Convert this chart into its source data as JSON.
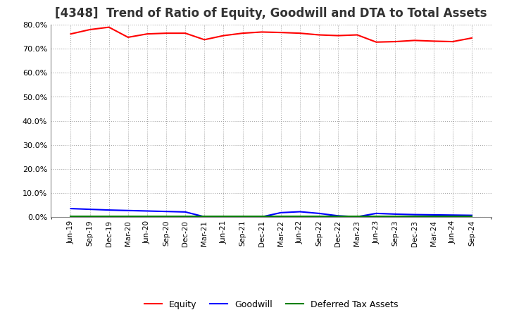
{
  "title": "[4348]  Trend of Ratio of Equity, Goodwill and DTA to Total Assets",
  "x_labels": [
    "Jun-19",
    "Sep-19",
    "Dec-19",
    "Mar-20",
    "Jun-20",
    "Sep-20",
    "Dec-20",
    "Mar-21",
    "Jun-21",
    "Sep-21",
    "Dec-21",
    "Mar-22",
    "Jun-22",
    "Sep-22",
    "Dec-22",
    "Mar-23",
    "Jun-23",
    "Sep-23",
    "Dec-23",
    "Mar-24",
    "Jun-24",
    "Sep-24"
  ],
  "equity": [
    76.2,
    78.0,
    79.0,
    74.8,
    76.2,
    76.5,
    76.5,
    73.8,
    75.5,
    76.5,
    77.0,
    76.8,
    76.5,
    75.8,
    75.5,
    75.8,
    72.8,
    73.0,
    73.5,
    73.2,
    73.0,
    74.5
  ],
  "goodwill": [
    3.5,
    3.2,
    2.9,
    2.7,
    2.5,
    2.3,
    2.1,
    0.1,
    0.08,
    0.06,
    0.05,
    1.8,
    2.2,
    1.5,
    0.5,
    0.1,
    1.5,
    1.2,
    1.0,
    0.9,
    0.8,
    0.7
  ],
  "dta": [
    0.3,
    0.3,
    0.3,
    0.3,
    0.3,
    0.3,
    0.3,
    0.3,
    0.3,
    0.3,
    0.3,
    0.3,
    0.3,
    0.3,
    0.3,
    0.3,
    0.3,
    0.3,
    0.3,
    0.3,
    0.3,
    0.3
  ],
  "equity_color": "#ff0000",
  "goodwill_color": "#0000ff",
  "dta_color": "#008000",
  "ylim": [
    0,
    80
  ],
  "ytick_interval": 10,
  "background_color": "#ffffff",
  "grid_color": "#aaaaaa",
  "title_fontsize": 12,
  "legend_labels": [
    "Equity",
    "Goodwill",
    "Deferred Tax Assets"
  ]
}
